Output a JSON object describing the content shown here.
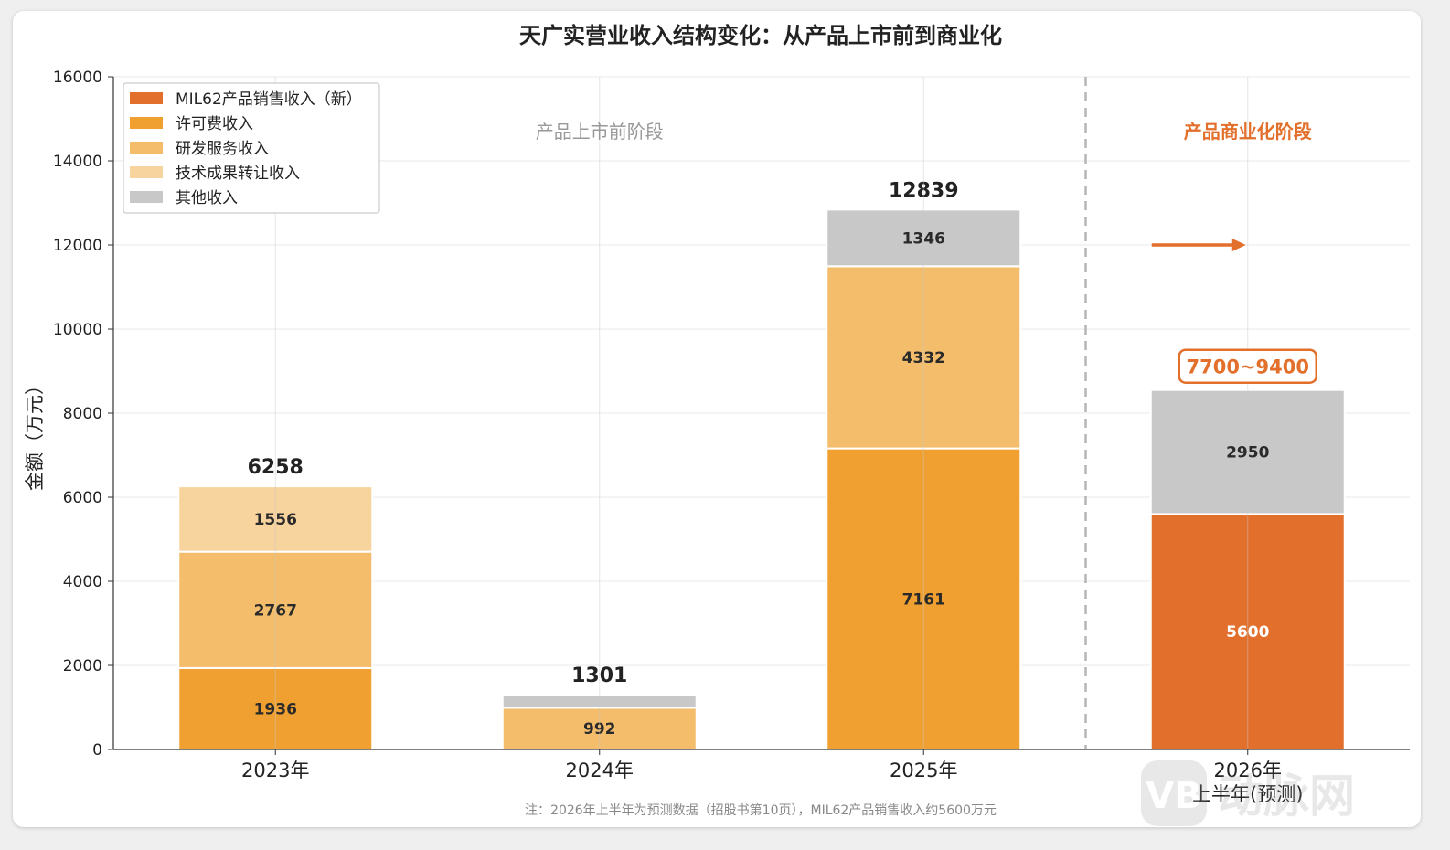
{
  "chart_data": {
    "type": "bar",
    "stacked": true,
    "title": "天广实营业收入结构变化：从产品上市前到商业化",
    "ylabel": "金额（万元）",
    "xlabel": "",
    "ylim": [
      0,
      16000
    ],
    "yticks": [
      0,
      2000,
      4000,
      6000,
      8000,
      10000,
      12000,
      14000,
      16000
    ],
    "grid": true,
    "legend_position": "top-left",
    "categories": [
      "2023年",
      "2024年",
      "2025年",
      "2026年\n上半年(预测)"
    ],
    "series": [
      {
        "name": "MIL62产品销售收入（新）",
        "color": "#e2702c",
        "values": [
          0,
          0,
          0,
          5600
        ]
      },
      {
        "name": "许可费收入",
        "color": "#f0a030",
        "values": [
          1936,
          0,
          7161,
          0
        ]
      },
      {
        "name": "研发服务收入",
        "color": "#f3bd6c",
        "values": [
          2767,
          992,
          4332,
          0
        ]
      },
      {
        "name": "技术成果转让收入",
        "color": "#f7d39d",
        "values": [
          1556,
          0,
          0,
          0
        ]
      },
      {
        "name": "其他收入",
        "color": "#c8c8c8",
        "values": [
          0,
          309,
          1346,
          2950
        ]
      }
    ],
    "segment_labels": [
      [
        "",
        "1936",
        "2767",
        "1556",
        ""
      ],
      [
        "",
        "",
        "992",
        "",
        ""
      ],
      [
        "",
        "7161",
        "4332",
        "",
        "1346"
      ],
      [
        "5600",
        "",
        "",
        "",
        "2950"
      ]
    ],
    "totals": [
      "6258",
      "1301",
      "12839",
      ""
    ],
    "annotations": {
      "phase_before": "产品上市前阶段",
      "phase_after": "产品商业化阶段",
      "forecast_range": "7700~9400",
      "divider_between": [
        "2025年",
        "2026年\n上半年(预测)"
      ],
      "arrow_y": 12000,
      "note": "注：2026年上半年为预测数据（招股书第10页），MIL62产品销售收入约5600万元"
    }
  },
  "colors": {
    "accent": "#e2702c",
    "divider": "#b5b5b5",
    "phase_before_text": "#999999"
  },
  "watermark": {
    "icon": "vb-logo-icon",
    "text": "动脉网"
  }
}
